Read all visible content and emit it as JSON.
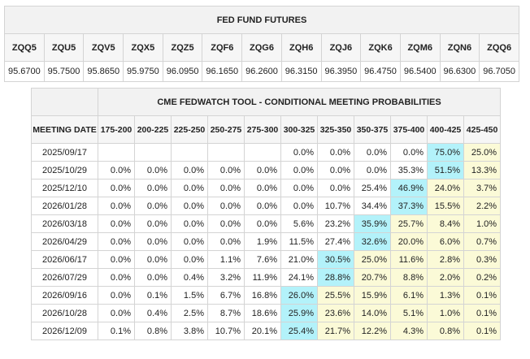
{
  "futures": {
    "title": "FED FUND FUTURES",
    "contracts": [
      "ZQQ5",
      "ZQU5",
      "ZQV5",
      "ZQX5",
      "ZQZ5",
      "ZQF6",
      "ZQG6",
      "ZQH6",
      "ZQJ6",
      "ZQK6",
      "ZQM6",
      "ZQN6",
      "ZQQ6"
    ],
    "prices": [
      "95.6700",
      "95.7500",
      "95.8650",
      "95.9750",
      "96.0950",
      "96.1650",
      "96.2600",
      "96.3150",
      "96.3950",
      "96.4750",
      "96.5400",
      "96.6300",
      "96.7050"
    ]
  },
  "probabilities": {
    "title": "CME FEDWATCH TOOL - CONDITIONAL MEETING PROBABILITIES",
    "meeting_date_header": "MEETING DATE",
    "ranges": [
      "175-200",
      "200-225",
      "225-250",
      "250-275",
      "275-300",
      "300-325",
      "325-350",
      "350-375",
      "375-400",
      "400-425",
      "425-450"
    ],
    "highlight_colors": {
      "max": "#b3f2fa",
      "current": "#fbfad7"
    },
    "rows": [
      {
        "date": "2025/09/17",
        "values": [
          "",
          "",
          "",
          "",
          "",
          "0.0%",
          "0.0%",
          "0.0%",
          "0.0%",
          "75.0%",
          "25.0%"
        ],
        "max": 9
      },
      {
        "date": "2025/10/29",
        "values": [
          "0.0%",
          "0.0%",
          "0.0%",
          "0.0%",
          "0.0%",
          "0.0%",
          "0.0%",
          "0.0%",
          "35.3%",
          "51.5%",
          "13.3%"
        ],
        "max": 9
      },
      {
        "date": "2025/12/10",
        "values": [
          "0.0%",
          "0.0%",
          "0.0%",
          "0.0%",
          "0.0%",
          "0.0%",
          "0.0%",
          "25.4%",
          "46.9%",
          "24.0%",
          "3.7%"
        ],
        "max": 8
      },
      {
        "date": "2026/01/28",
        "values": [
          "0.0%",
          "0.0%",
          "0.0%",
          "0.0%",
          "0.0%",
          "0.0%",
          "10.7%",
          "34.4%",
          "37.3%",
          "15.5%",
          "2.2%"
        ],
        "max": 8
      },
      {
        "date": "2026/03/18",
        "values": [
          "0.0%",
          "0.0%",
          "0.0%",
          "0.0%",
          "0.0%",
          "5.6%",
          "23.2%",
          "35.9%",
          "25.7%",
          "8.4%",
          "1.0%"
        ],
        "max": 7
      },
      {
        "date": "2026/04/29",
        "values": [
          "0.0%",
          "0.0%",
          "0.0%",
          "0.0%",
          "1.9%",
          "11.5%",
          "27.4%",
          "32.6%",
          "20.0%",
          "6.0%",
          "0.7%"
        ],
        "max": 7
      },
      {
        "date": "2026/06/17",
        "values": [
          "0.0%",
          "0.0%",
          "0.0%",
          "1.1%",
          "7.6%",
          "21.0%",
          "30.5%",
          "25.0%",
          "11.6%",
          "2.8%",
          "0.3%"
        ],
        "max": 6
      },
      {
        "date": "2026/07/29",
        "values": [
          "0.0%",
          "0.0%",
          "0.4%",
          "3.2%",
          "11.9%",
          "24.1%",
          "28.8%",
          "20.7%",
          "8.8%",
          "2.0%",
          "0.2%"
        ],
        "max": 6
      },
      {
        "date": "2026/09/16",
        "values": [
          "0.0%",
          "0.1%",
          "1.5%",
          "6.7%",
          "16.8%",
          "26.0%",
          "25.5%",
          "15.9%",
          "6.1%",
          "1.3%",
          "0.1%"
        ],
        "max": 5
      },
      {
        "date": "2026/10/28",
        "values": [
          "0.0%",
          "0.4%",
          "2.5%",
          "8.7%",
          "18.6%",
          "25.9%",
          "23.6%",
          "14.0%",
          "5.1%",
          "1.0%",
          "0.1%"
        ],
        "max": 5
      },
      {
        "date": "2026/12/09",
        "values": [
          "0.1%",
          "0.8%",
          "3.8%",
          "10.7%",
          "20.1%",
          "25.4%",
          "21.7%",
          "12.2%",
          "4.3%",
          "0.8%",
          "0.1%"
        ],
        "max": 5
      }
    ]
  }
}
